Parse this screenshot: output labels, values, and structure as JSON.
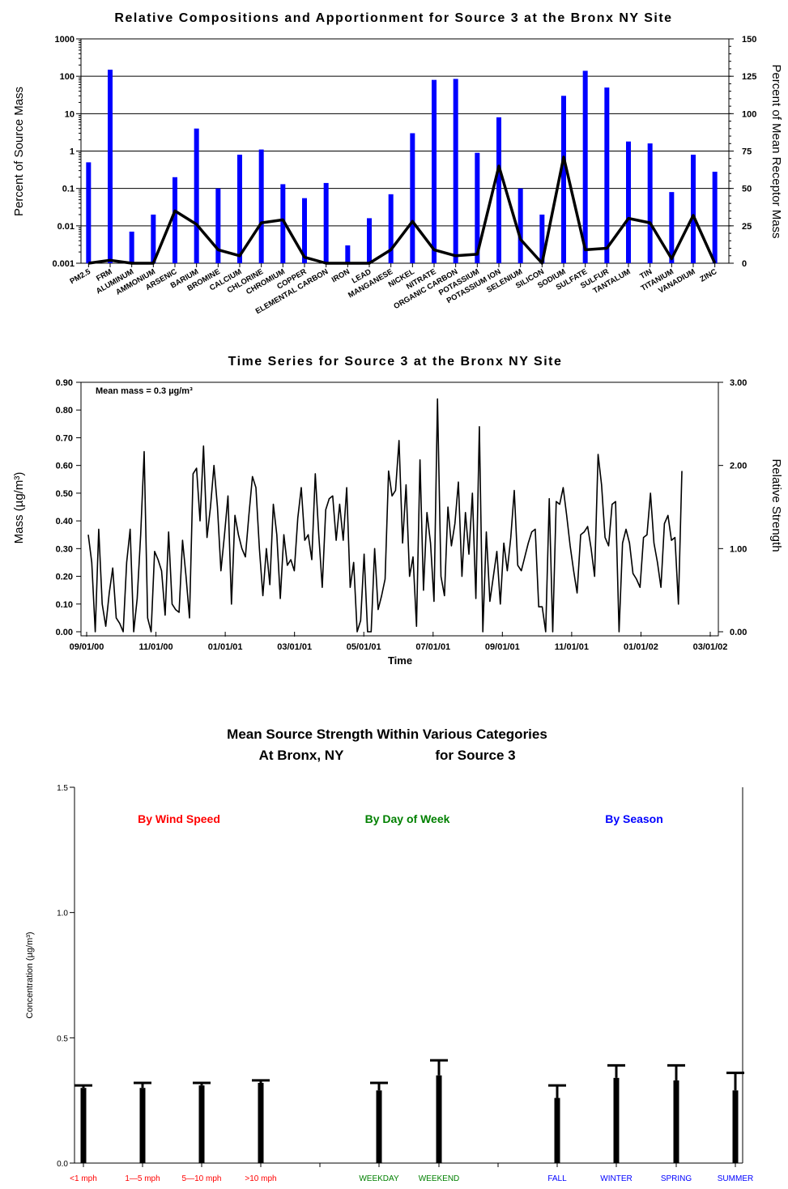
{
  "chart_data": [
    {
      "type": "bar",
      "title": "Relative Compositions and Apportionment for Source 3 at the Bronx NY Site",
      "ylabel": "Percent of Source Mass",
      "y2label": "Percent of Mean Receptor Mass",
      "yscale": "log",
      "ylim": [
        0.001,
        1000
      ],
      "y2lim": [
        0,
        150
      ],
      "yticks": [
        "0.001",
        "0.01",
        "0.1",
        "1",
        "10",
        "100",
        "1000"
      ],
      "y2ticks": [
        "0",
        "25",
        "50",
        "75",
        "100",
        "125",
        "150"
      ],
      "grid": true,
      "colors": {
        "bars": "#0000ff",
        "line": "#000000"
      },
      "categories": [
        "PM2.5",
        "FRM",
        "ALUMINUM",
        "AMMONIUM",
        "ARSENIC",
        "BARIUM",
        "BROMINE",
        "CALCIUM",
        "CHLORINE",
        "CHROMIUM",
        "COPPER",
        "ELEMENTAL CARBON",
        "IRON",
        "LEAD",
        "MANGANESE",
        "NICKEL",
        "NITRATE",
        "ORGANIC CARBON",
        "POTASSIUM",
        "POTASSIUM ION",
        "SELENIUM",
        "SILICON",
        "SODIUM",
        "SULFATE",
        "SULFUR",
        "TANTALUM",
        "TIN",
        "TITANIUM",
        "VANADIUM",
        "ZINC"
      ],
      "series": [
        {
          "values": [
            0.5,
            150,
            0.007,
            0.02,
            0.2,
            4,
            0.1,
            0.8,
            1.1,
            0.13,
            0.055,
            0.14,
            0.003,
            0.016,
            0.07,
            3,
            80,
            85,
            0.9,
            8,
            0.1,
            0.02,
            30,
            140,
            50,
            1.8,
            1.6,
            0.08,
            0.8,
            0.28
          ]
        },
        {
          "values": [
            0,
            2,
            0,
            0,
            35,
            26,
            9,
            5,
            27,
            29,
            4,
            0,
            0,
            0,
            9,
            28,
            9,
            5,
            6,
            65,
            16,
            0,
            71,
            9,
            10,
            30,
            27,
            3,
            32,
            0
          ]
        }
      ]
    },
    {
      "type": "line",
      "title": "Time Series for Source 3 at the Bronx NY Site",
      "xlabel": "Time",
      "ylabel": "Mass (µg/m³)",
      "y2label": "Relative Strength",
      "annotation": "Mean mass = 0.3 µg/m³",
      "ylim": [
        0,
        0.9
      ],
      "y2lim": [
        0,
        3
      ],
      "yticks": [
        "0.00",
        "0.10",
        "0.20",
        "0.30",
        "0.40",
        "0.50",
        "0.60",
        "0.70",
        "0.80",
        "0.90"
      ],
      "y2ticks": [
        "0.00",
        "1.00",
        "2.00",
        "3.00"
      ],
      "xticks": [
        "09/01/00",
        "11/01/00",
        "01/01/01",
        "03/01/01",
        "05/01/01",
        "07/01/01",
        "09/01/01",
        "11/01/01",
        "01/01/02",
        "03/01/02"
      ],
      "x_start": "09/01/00",
      "x_end": "03/01/02",
      "y": [
        0.35,
        0.25,
        0.0,
        0.37,
        0.1,
        0.02,
        0.14,
        0.23,
        0.05,
        0.03,
        0.0,
        0.25,
        0.37,
        0.0,
        0.12,
        0.35,
        0.65,
        0.05,
        0.0,
        0.29,
        0.26,
        0.22,
        0.06,
        0.36,
        0.1,
        0.08,
        0.07,
        0.33,
        0.2,
        0.05,
        0.57,
        0.59,
        0.4,
        0.67,
        0.34,
        0.45,
        0.6,
        0.45,
        0.22,
        0.35,
        0.49,
        0.1,
        0.42,
        0.35,
        0.3,
        0.27,
        0.42,
        0.56,
        0.52,
        0.3,
        0.13,
        0.3,
        0.17,
        0.46,
        0.35,
        0.12,
        0.35,
        0.24,
        0.26,
        0.22,
        0.41,
        0.52,
        0.33,
        0.35,
        0.26,
        0.57,
        0.35,
        0.16,
        0.44,
        0.48,
        0.49,
        0.33,
        0.46,
        0.33,
        0.52,
        0.16,
        0.25,
        0.0,
        0.04,
        0.28,
        0.0,
        0.0,
        0.3,
        0.08,
        0.13,
        0.19,
        0.58,
        0.49,
        0.51,
        0.69,
        0.32,
        0.53,
        0.2,
        0.27,
        0.02,
        0.62,
        0.15,
        0.43,
        0.32,
        0.11,
        0.84,
        0.2,
        0.13,
        0.45,
        0.31,
        0.39,
        0.54,
        0.2,
        0.43,
        0.28,
        0.5,
        0.12,
        0.74,
        0.0,
        0.36,
        0.11,
        0.2,
        0.29,
        0.1,
        0.32,
        0.22,
        0.34,
        0.51,
        0.24,
        0.22,
        0.27,
        0.32,
        0.36,
        0.37,
        0.09,
        0.09,
        0.0,
        0.48,
        0.0,
        0.47,
        0.46,
        0.52,
        0.42,
        0.31,
        0.22,
        0.14,
        0.35,
        0.36,
        0.38,
        0.3,
        0.2,
        0.64,
        0.53,
        0.34,
        0.31,
        0.46,
        0.47,
        0.0,
        0.32,
        0.37,
        0.32,
        0.21,
        0.19,
        0.16,
        0.34,
        0.35,
        0.5,
        0.32,
        0.25,
        0.16,
        0.39,
        0.42,
        0.33,
        0.34,
        0.1,
        0.58
      ]
    },
    {
      "type": "bar",
      "title": "Mean Source Strength Within Various Categories",
      "subtitle_left": "At Bronx, NY",
      "subtitle_right": "for Source 3",
      "ylabel": "Concentration (µg/m³)",
      "ylim": [
        0,
        1.5
      ],
      "yticks": [
        "0.0",
        "0.5",
        "1.0",
        "1.5"
      ],
      "groups": [
        {
          "name": "By Wind Speed",
          "color": "#ff0000"
        },
        {
          "name": "By Day of Week",
          "color": "#008000"
        },
        {
          "name": "By Season",
          "color": "#0000ff"
        }
      ],
      "categories": [
        "<1 mph",
        "1—5 mph",
        "5—10 mph",
        ">10 mph",
        "WEEKDAY",
        "WEEKEND",
        "FALL",
        "WINTER",
        "SPRING",
        "SUMMER"
      ],
      "category_groups": [
        0,
        0,
        0,
        0,
        1,
        1,
        2,
        2,
        2,
        2
      ],
      "values": [
        0.3,
        0.3,
        0.31,
        0.32,
        0.29,
        0.35,
        0.26,
        0.34,
        0.33,
        0.29
      ],
      "upper": [
        0.31,
        0.32,
        0.32,
        0.33,
        0.32,
        0.41,
        0.31,
        0.39,
        0.39,
        0.36
      ]
    }
  ]
}
